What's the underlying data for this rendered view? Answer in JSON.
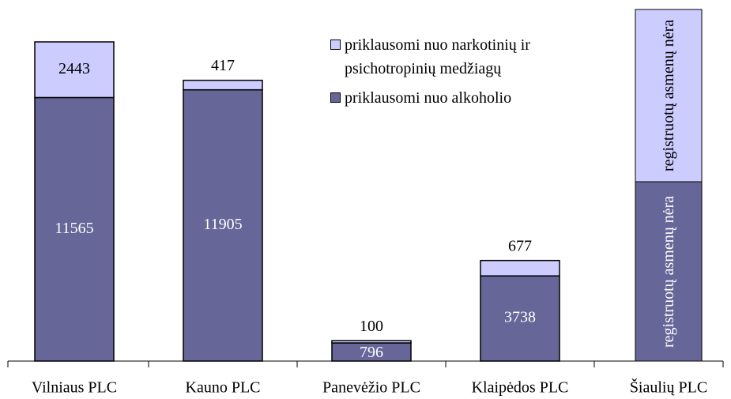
{
  "chart_data": {
    "type": "stacked_bar",
    "categories": [
      "Vilniaus PLC",
      "Kauno PLC",
      "Panevėžio PLC",
      "Klaipėdos PLC",
      "Šiaulių PLC"
    ],
    "series": [
      {
        "name": "priklausomi nuo alkoholio",
        "color": "#666699",
        "values": [
          11565,
          11905,
          796,
          3738,
          null
        ]
      },
      {
        "name": "priklausomi nuo narkotinių ir psichotropinių medžiagų",
        "color": "#ccccff",
        "values": [
          2443,
          417,
          100,
          677,
          null
        ]
      }
    ],
    "annotations": [
      "registruotų asmenų nėra",
      "registruotų asmenų nėra"
    ]
  }
}
